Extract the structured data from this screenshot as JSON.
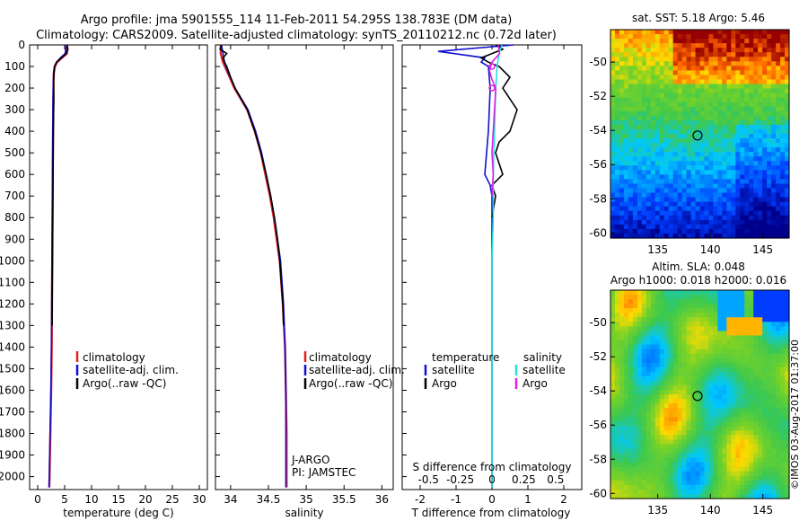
{
  "header": {
    "line1": "Argo profile: jma 5901555_114 11-Feb-2011 54.295S 138.783E (DM data)",
    "line2": "Climatology: CARS2009. Satellite-adjusted climatology: synTS_20110212.nc (0.72d later)"
  },
  "colors": {
    "climatology": "#e02020",
    "satellite": "#1010d0",
    "argo": "#000000",
    "sal_satellite": "#20e0e0",
    "sal_argo": "#e020e0"
  },
  "chart_data": [
    {
      "type": "line",
      "id": "temperature",
      "xlabel": "temperature (deg C)",
      "ylabel": "",
      "xlim": [
        -1.5,
        31.5
      ],
      "ylim": [
        2060,
        0
      ],
      "xticks": [
        "0",
        "5",
        "10",
        "15",
        "20",
        "25",
        "30"
      ],
      "yticks": [
        "0",
        "100",
        "200",
        "300",
        "400",
        "500",
        "600",
        "700",
        "800",
        "900",
        "1000",
        "1100",
        "1200",
        "1300",
        "1400",
        "1500",
        "1600",
        "1700",
        "1800",
        "1900",
        "2000"
      ],
      "legend": [
        "climatology",
        "satellite-adj. clim.",
        "Argo(..raw -QC)"
      ],
      "series": [
        {
          "name": "climatology",
          "depth": [
            0,
            20,
            40,
            60,
            80,
            100,
            130,
            170,
            250,
            400,
            600,
            800,
            1000,
            1200,
            1400,
            1600,
            1800,
            2000,
            2050
          ],
          "values": [
            5.5,
            5.5,
            5.4,
            4.5,
            3.6,
            3.2,
            3.0,
            2.95,
            2.9,
            2.85,
            2.8,
            2.75,
            2.7,
            2.65,
            2.6,
            2.5,
            2.35,
            2.2,
            2.15
          ]
        },
        {
          "name": "satellite-adj. clim.",
          "depth": [
            0,
            20,
            40,
            60,
            80,
            100,
            130,
            170,
            250,
            400,
            600,
            800,
            1000,
            1200,
            1400,
            1600,
            1800,
            2000,
            2050
          ],
          "values": [
            5.1,
            5.2,
            5.1,
            4.2,
            3.5,
            3.1,
            2.95,
            2.9,
            2.85,
            2.8,
            2.75,
            2.7,
            2.65,
            2.6,
            2.55,
            2.45,
            2.3,
            2.15,
            2.1
          ]
        },
        {
          "name": "Argo(..raw -QC)",
          "depth": [
            0,
            20,
            40,
            60,
            80,
            100,
            130,
            170,
            250,
            400,
            600,
            800,
            1000,
            1100,
            1200,
            1300
          ],
          "values": [
            5.4,
            5.6,
            5.3,
            4.4,
            3.5,
            3.1,
            3.0,
            2.95,
            3.0,
            2.9,
            2.85,
            2.8,
            2.75,
            2.72,
            2.7,
            2.68
          ]
        }
      ]
    },
    {
      "type": "line",
      "id": "salinity",
      "xlabel": "salinity",
      "xlim": [
        33.8,
        36.15
      ],
      "ylim": [
        2060,
        0
      ],
      "xticks": [
        "34",
        "34.5",
        "35",
        "35.5",
        "36"
      ],
      "legend": [
        "climatology",
        "satellite-adj. clim.",
        "Argo(..raw -QC)"
      ],
      "annotations": [
        "J-ARGO",
        "PI: JAMSTEC"
      ],
      "series": [
        {
          "name": "climatology",
          "depth": [
            0,
            40,
            80,
            120,
            160,
            200,
            300,
            400,
            500,
            600,
            700,
            800,
            900,
            1000,
            1200,
            1400,
            1600,
            1800,
            2000,
            2050
          ],
          "values": [
            33.87,
            33.87,
            33.9,
            33.95,
            34.0,
            34.05,
            34.22,
            34.32,
            34.4,
            34.46,
            34.52,
            34.57,
            34.61,
            34.65,
            34.69,
            34.72,
            34.73,
            34.74,
            34.74,
            34.74
          ]
        },
        {
          "name": "satellite-adj. clim.",
          "depth": [
            0,
            40,
            80,
            120,
            160,
            200,
            300,
            400,
            500,
            600,
            700,
            800,
            900,
            1000,
            1200,
            1400,
            1600,
            1800,
            2000,
            2050
          ],
          "values": [
            33.88,
            33.9,
            33.92,
            33.96,
            34.01,
            34.06,
            34.23,
            34.33,
            34.41,
            34.47,
            34.53,
            34.58,
            34.62,
            34.66,
            34.7,
            34.72,
            34.73,
            34.73,
            34.73,
            34.73
          ]
        },
        {
          "name": "Argo(..raw -QC)",
          "depth": [
            0,
            20,
            40,
            60,
            80,
            100,
            150,
            200,
            300,
            400,
            500,
            600,
            700,
            800,
            900,
            1000,
            1100,
            1200,
            1300
          ],
          "values": [
            33.88,
            33.86,
            33.95,
            33.9,
            33.92,
            33.95,
            34.0,
            34.06,
            34.22,
            34.32,
            34.4,
            34.47,
            34.53,
            34.58,
            34.62,
            34.65,
            34.67,
            34.69,
            34.7
          ]
        }
      ]
    },
    {
      "type": "line",
      "id": "differences",
      "xlabel": "T difference from climatology",
      "x2label": "S difference from climatology",
      "xlim": [
        -2.5,
        2.5
      ],
      "ylim": [
        2060,
        0
      ],
      "xticks": [
        "-2",
        "-1",
        "0",
        "1",
        "2"
      ],
      "x2ticks": [
        "-0.5",
        "-0.25",
        "0",
        "0.25",
        "0.5"
      ],
      "legend_left_title": "temperature",
      "legend_right_title": "salinity",
      "legend": [
        "satellite",
        "Argo",
        "satellite",
        "Argo"
      ],
      "series": [
        {
          "name": "T satellite",
          "depth": [
            0,
            30,
            60,
            80,
            100,
            200,
            400,
            600,
            650,
            700,
            800,
            1000,
            1500,
            2000,
            2050
          ],
          "values": [
            0.6,
            -1.5,
            -0.2,
            -0.3,
            -0.1,
            -0.05,
            -0.1,
            -0.2,
            -0.05,
            0.0,
            0.0,
            0.0,
            0.0,
            0.0,
            0.0
          ]
        },
        {
          "name": "T Argo",
          "depth": [
            0,
            20,
            40,
            60,
            80,
            100,
            150,
            200,
            300,
            400,
            450,
            500,
            600,
            650,
            700,
            800
          ],
          "values": [
            0.1,
            0.3,
            0.0,
            -0.3,
            -0.1,
            0.2,
            0.5,
            0.3,
            0.7,
            0.5,
            0.2,
            0.1,
            0.3,
            0.0,
            0.1,
            0.0
          ]
        },
        {
          "name": "S satellite",
          "depth": [
            0,
            30,
            60,
            100,
            200,
            400,
            600,
            800,
            1000,
            1500,
            2000,
            2050
          ],
          "values": [
            0.08,
            0.06,
            0.05,
            0.04,
            0.03,
            0.02,
            0.01,
            0.01,
            0.0,
            0.0,
            0.0,
            0.0
          ]
        },
        {
          "name": "S Argo",
          "depth": [
            0,
            40,
            80,
            120,
            160,
            200,
            300,
            400,
            500,
            600,
            700
          ],
          "values": [
            0.05,
            0.06,
            0.0,
            -0.02,
            0.0,
            0.03,
            0.02,
            0.01,
            0.0,
            0.01,
            0.0
          ]
        }
      ]
    },
    {
      "type": "heatmap",
      "id": "sst-map",
      "title": "sat. SST: 5.18 Argo: 5.46",
      "xlim": [
        130.5,
        147.5
      ],
      "ylim": [
        -60.3,
        -48.1
      ],
      "xticks": [
        "135",
        "140",
        "145"
      ],
      "yticks": [
        "-50",
        "-52",
        "-54",
        "-56",
        "-58",
        "-60"
      ],
      "marker": {
        "lon": 138.783,
        "lat": -54.295
      }
    },
    {
      "type": "heatmap",
      "id": "sla-map",
      "title": "Altim. SLA: 0.048",
      "subtitle": "Argo h1000: 0.018 h2000: 0.016",
      "xlim": [
        130.5,
        147.5
      ],
      "ylim": [
        -60.3,
        -48.1
      ],
      "xticks": [
        "135",
        "140",
        "145"
      ],
      "yticks": [
        "-50",
        "-52",
        "-54",
        "-56",
        "-58",
        "-60"
      ],
      "marker": {
        "lon": 138.783,
        "lat": -54.295
      },
      "watermark": "©IMOS 03-Aug-2017 01:37:00"
    }
  ]
}
